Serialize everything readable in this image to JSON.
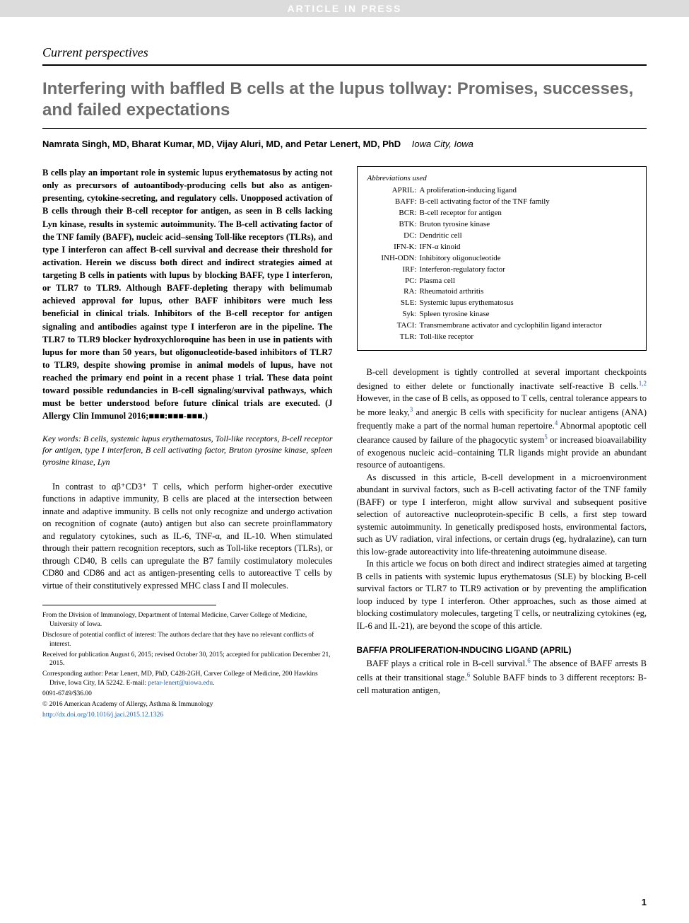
{
  "banner": "ARTICLE IN PRESS",
  "section_label": "Current perspectives",
  "title": "Interfering with baffled B cells at the lupus tollway: Promises, successes, and failed expectations",
  "authors_line": "Namrata Singh, MD, Bharat Kumar, MD, Vijay Aluri, MD, and Petar Lenert, MD, PhD",
  "authors_location": "Iowa City, Iowa",
  "abstract": "B cells play an important role in systemic lupus erythematosus by acting not only as precursors of autoantibody-producing cells but also as antigen-presenting, cytokine-secreting, and regulatory cells. Unopposed activation of B cells through their B-cell receptor for antigen, as seen in B cells lacking Lyn kinase, results in systemic autoimmunity. The B-cell activating factor of the TNF family (BAFF), nucleic acid–sensing Toll-like receptors (TLRs), and type I interferon can affect B-cell survival and decrease their threshold for activation. Herein we discuss both direct and indirect strategies aimed at targeting B cells in patients with lupus by blocking BAFF, type I interferon, or TLR7 to TLR9. Although BAFF-depleting therapy with belimumab achieved approval for lupus, other BAFF inhibitors were much less beneficial in clinical trials. Inhibitors of the B-cell receptor for antigen signaling and antibodies against type I interferon are in the pipeline. The TLR7 to TLR9 blocker hydroxychloroquine has been in use in patients with lupus for more than 50 years, but oligonucleotide-based inhibitors of TLR7 to TLR9, despite showing promise in animal models of lupus, have not reached the primary end point in a recent phase 1 trial. These data point toward possible redundancies in B-cell signaling/survival pathways, which must be better understood before future clinical trials are executed. (J Allergy Clin Immunol 2016;■■■:■■■-■■■.)",
  "keywords_label": "Key words:",
  "keywords": "B cells, systemic lupus erythematosus, Toll-like receptors, B-cell receptor for antigen, type I interferon, B cell activating factor, Bruton tyrosine kinase, spleen tyrosine kinase, Lyn",
  "left_intro": "In contrast to αβ⁺CD3⁺ T cells, which perform higher-order executive functions in adaptive immunity, B cells are placed at the intersection between innate and adaptive immunity. B cells not only recognize and undergo activation on recognition of cognate (auto) antigen but also can secrete proinflammatory and regulatory cytokines, such as IL-6, TNF-α, and IL-10. When stimulated through their pattern recognition receptors, such as Toll-like receptors (TLRs), or through CD40, B cells can upregulate the B7 family costimulatory molecules CD80 and CD86 and act as antigen-presenting cells to autoreactive T cells by virtue of their constitutively expressed MHC class I and II molecules.",
  "footnotes": {
    "from": "From the Division of Immunology, Department of Internal Medicine, Carver College of Medicine, University of Iowa.",
    "disclosure": "Disclosure of potential conflict of interest: The authors declare that they have no relevant conflicts of interest.",
    "received": "Received for publication August 6, 2015; revised October 30, 2015; accepted for publication December 21, 2015.",
    "corresponding": "Corresponding author: Petar Lenert, MD, PhD, C428-2GH, Carver College of Medicine, 200 Hawkins Drive, Iowa City, IA 52242. E-mail: ",
    "email": "petar-lenert@uiowa.edu",
    "issn": "0091-6749/$36.00",
    "copyright": "© 2016 American Academy of Allergy, Asthma & Immunology",
    "doi": "http://dx.doi.org/10.1016/j.jaci.2015.12.1326"
  },
  "abbrev_header": "Abbreviations used",
  "abbreviations": [
    {
      "k": "APRIL:",
      "v": "A proliferation-inducing ligand"
    },
    {
      "k": "BAFF:",
      "v": "B-cell activating factor of the TNF family"
    },
    {
      "k": "BCR:",
      "v": "B-cell receptor for antigen"
    },
    {
      "k": "BTK:",
      "v": "Bruton tyrosine kinase"
    },
    {
      "k": "DC:",
      "v": "Dendritic cell"
    },
    {
      "k": "IFN-K:",
      "v": "IFN-α kinoid"
    },
    {
      "k": "INH-ODN:",
      "v": "Inhibitory oligonucleotide"
    },
    {
      "k": "IRF:",
      "v": "Interferon-regulatory factor"
    },
    {
      "k": "PC:",
      "v": "Plasma cell"
    },
    {
      "k": "RA:",
      "v": "Rheumatoid arthritis"
    },
    {
      "k": "SLE:",
      "v": "Systemic lupus erythematosus"
    },
    {
      "k": "Syk:",
      "v": "Spleen tyrosine kinase"
    },
    {
      "k": "TACI:",
      "v": "Transmembrane activator and cyclophilin ligand interactor"
    },
    {
      "k": "TLR:",
      "v": "Toll-like receptor"
    }
  ],
  "right_paragraphs": {
    "p1_a": "B-cell development is tightly controlled at several important checkpoints designed to either delete or functionally inactivate self-reactive B cells.",
    "p1_ref1": "1,2",
    "p1_b": " However, in the case of B cells, as opposed to T cells, central tolerance appears to be more leaky,",
    "p1_ref2": "3",
    "p1_c": " and anergic B cells with specificity for nuclear antigens (ANA) frequently make a part of the normal human repertoire.",
    "p1_ref3": "4",
    "p1_d": " Abnormal apoptotic cell clearance caused by failure of the phagocytic system",
    "p1_ref4": "5",
    "p1_e": " or increased bioavailability of exogenous nucleic acid–containing TLR ligands might provide an abundant resource of autoantigens.",
    "p2": "As discussed in this article, B-cell development in a microenvironment abundant in survival factors, such as B-cell activating factor of the TNF family (BAFF) or type I interferon, might allow survival and subsequent positive selection of autoreactive nucleoprotein-specific B cells, a first step toward systemic autoimmunity. In genetically predisposed hosts, environmental factors, such as UV radiation, viral infections, or certain drugs (eg, hydralazine), can turn this low-grade autoreactivity into life-threatening autoimmune disease.",
    "p3": "In this article we focus on both direct and indirect strategies aimed at targeting B cells in patients with systemic lupus erythematosus (SLE) by blocking B-cell survival factors or TLR7 to TLR9 activation or by preventing the amplification loop induced by type I interferon. Other approaches, such as those aimed at blocking costimulatory molecules, targeting T cells, or neutralizing cytokines (eg, IL-6 and IL-21), are beyond the scope of this article."
  },
  "section_heading": "BAFF/A PROLIFERATION-INDUCING LIGAND (APRIL)",
  "baff_p_a": "BAFF plays a critical role in B-cell survival.",
  "baff_ref1": "6",
  "baff_p_b": " The absence of BAFF arrests B cells at their transitional stage.",
  "baff_ref2": "6",
  "baff_p_c": " Soluble BAFF binds to 3 different receptors: B-cell maturation antigen,",
  "page_number": "1",
  "colors": {
    "banner_bg": "#dcdcdc",
    "banner_text": "#ffffff",
    "title_text": "#6d6d6d",
    "link": "#1a5fb4",
    "body": "#000000"
  }
}
